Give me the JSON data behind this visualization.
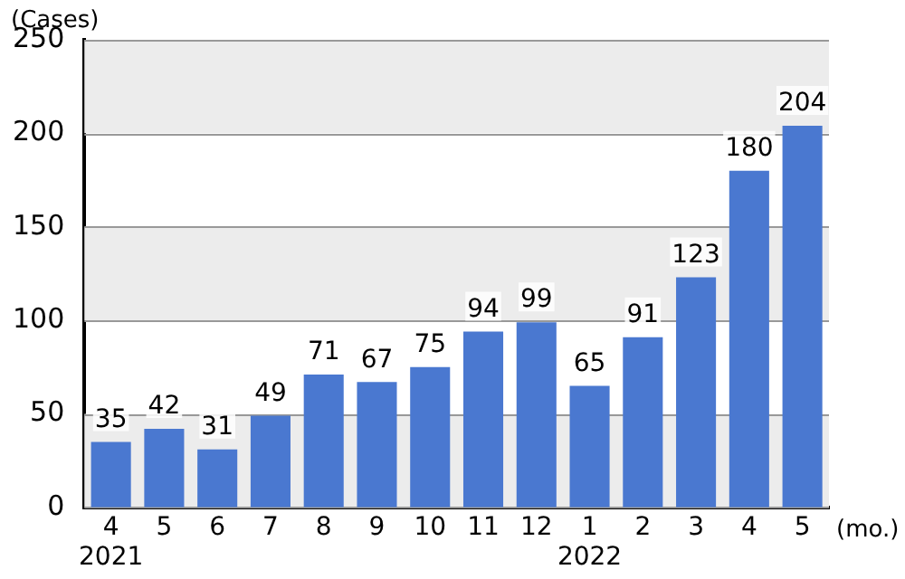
{
  "chart_data": {
    "type": "bar",
    "ylabel": "(Cases)",
    "xlabel": "(mo.)",
    "categories": [
      "4\n2021",
      "5",
      "6",
      "7",
      "8",
      "9",
      "10",
      "11",
      "12",
      "1\n2022",
      "2",
      "3",
      "4",
      "5"
    ],
    "values": [
      35,
      42,
      31,
      49,
      71,
      67,
      75,
      94,
      99,
      65,
      91,
      123,
      180,
      204
    ],
    "color": "#4a78d0",
    "data_labels": true,
    "ylim": [
      0,
      250
    ],
    "yticks": [
      0,
      50,
      100,
      150,
      200,
      250
    ],
    "grid": "y",
    "bands": [
      {
        "axis": "y",
        "from": 0,
        "to": 50,
        "color": "#ececec"
      },
      {
        "axis": "y",
        "from": 100,
        "to": 150,
        "color": "#ececec"
      },
      {
        "axis": "y",
        "from": 200,
        "to": 250,
        "color": "#ececec"
      }
    ]
  }
}
